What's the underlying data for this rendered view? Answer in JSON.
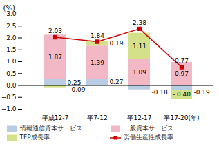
{
  "chart_data": {
    "type": "bar",
    "stacked": true,
    "data_labels": true,
    "legend": "bottom",
    "grid": false,
    "ylabel": "(%)",
    "categories": [
      "平成12-7",
      "平7-12",
      "平12-17",
      "平17-20(年)"
    ],
    "series": [
      {
        "name": "情報通信資本サービス",
        "color": "#b8cce4",
        "values": [
          0.25,
          0.27,
          -0.18,
          -0.19
        ]
      },
      {
        "name": "一般資本サービス",
        "color": "#f2b8c6",
        "values": [
          1.87,
          1.39,
          1.09,
          0.97
        ]
      },
      {
        "name": "TFP成長率",
        "color": "#d4e08a",
        "values": [
          -0.09,
          0.19,
          1.11,
          -0.4
        ],
        "value_labels": [
          "- 0.09",
          "0.19",
          "1.11",
          "- 0.40"
        ]
      },
      {
        "name": "労働生産性成長率",
        "type": "line",
        "color": "#cc0000",
        "marker": "square",
        "line_style": "solid",
        "values": [
          2.03,
          1.84,
          2.38,
          0.77
        ]
      }
    ],
    "ylim": [
      -1.0,
      3.0
    ],
    "yticks": [
      {
        "value": -1.0,
        "label": "−1.0"
      },
      {
        "value": -0.5,
        "label": "−0.5"
      },
      {
        "value": 0.0,
        "label": "0.0"
      },
      {
        "value": 0.5,
        "label": "0.5"
      },
      {
        "value": 1.0,
        "label": "1.0"
      },
      {
        "value": 1.5,
        "label": "1.5"
      },
      {
        "value": 2.0,
        "label": "2.0"
      },
      {
        "value": 2.5,
        "label": "2.5"
      },
      {
        "value": 3.0,
        "label": "3.0"
      }
    ]
  }
}
